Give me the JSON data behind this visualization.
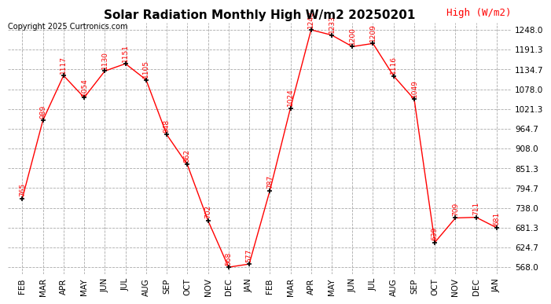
{
  "title": "Solar Radiation Monthly High W/m2 20250201",
  "copyright": "Copyright 2025 Curtronics.com",
  "legend_label": "High (W/m2)",
  "months": [
    "FEB",
    "MAR",
    "APR",
    "MAY",
    "JUN",
    "JUL",
    "AUG",
    "SEP",
    "OCT",
    "NOV",
    "DEC",
    "JAN",
    "FEB",
    "MAR",
    "APR",
    "MAY",
    "JUN",
    "JUL",
    "AUG",
    "SEP",
    "OCT",
    "NOV",
    "DEC",
    "JAN"
  ],
  "values": [
    765,
    989,
    1117,
    1054,
    1130,
    1151,
    1105,
    948,
    862,
    702,
    568,
    577,
    787,
    1024,
    1248,
    1233,
    1200,
    1209,
    1116,
    1049,
    639,
    709,
    711,
    681
  ],
  "line_color": "red",
  "marker_color": "black",
  "label_color": "red",
  "title_color": "black",
  "copyright_color": "black",
  "legend_color": "red",
  "background_color": "#ffffff",
  "grid_color": "#aaaaaa",
  "ylim_min": 568.0,
  "ylim_max": 1248.0,
  "yticks": [
    568.0,
    624.7,
    681.3,
    738.0,
    794.7,
    851.3,
    908.0,
    964.7,
    1021.3,
    1078.0,
    1134.7,
    1191.3,
    1248.0
  ],
  "ytick_labels": [
    "568.0",
    "624.7",
    "681.3",
    "738.0",
    "794.7",
    "851.3",
    "908.0",
    "964.7",
    "1021.3",
    "1078.0",
    "1134.7",
    "1191.3",
    "1248.0"
  ],
  "title_fontsize": 11,
  "label_fontsize": 6.5,
  "tick_fontsize": 7.5,
  "copyright_fontsize": 7,
  "legend_fontsize": 9
}
